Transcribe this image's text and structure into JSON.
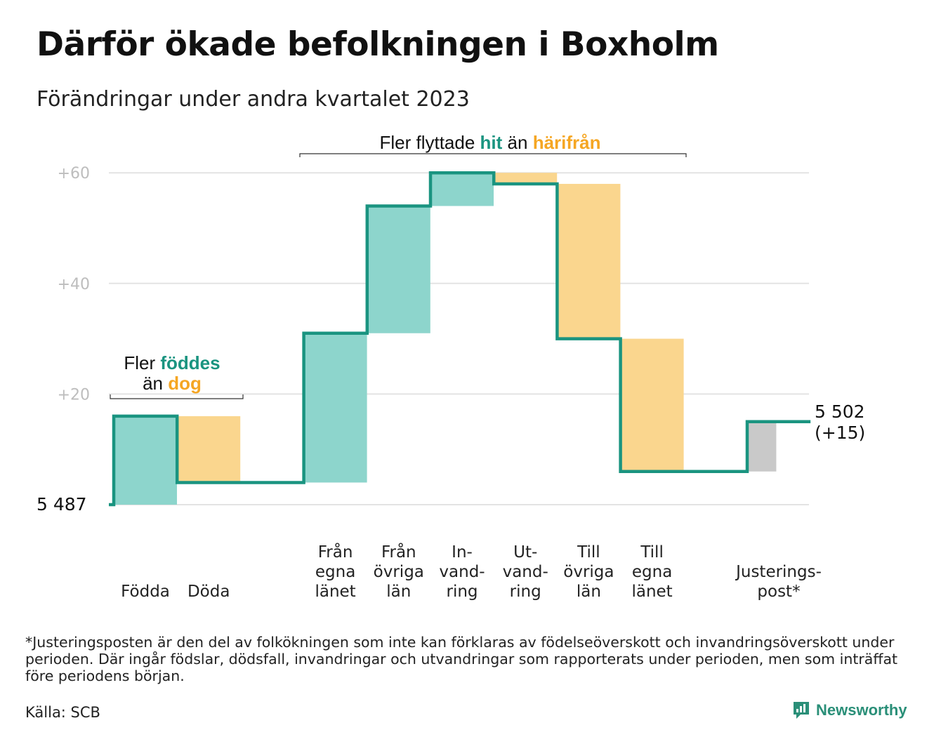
{
  "title": "Därför ökade befolkningen i Boxholm",
  "subtitle": "Förändringar under andra kvartalet 2023",
  "colors": {
    "line": "#1a9480",
    "increase": "#8dd5cc",
    "decrease": "#fad68e",
    "adjustment": "#c9c9c9",
    "grid": "#e3e3e3",
    "hit": "#1a9480",
    "harifran": "#f5a623"
  },
  "chart_data": {
    "type": "waterfall",
    "base_value": 5487,
    "base_label": "5  487",
    "y_ticks": [
      {
        "value": 20,
        "label": "+20"
      },
      {
        "value": 40,
        "label": "+40"
      },
      {
        "value": 60,
        "label": "+60"
      }
    ],
    "ylim": [
      0,
      60
    ],
    "steps": [
      {
        "category": [
          "Födda"
        ],
        "delta": 16,
        "kind": "increase"
      },
      {
        "category": [
          "Döda"
        ],
        "delta": -12,
        "kind": "decrease"
      },
      {
        "category": [],
        "delta": 0,
        "kind": "gap"
      },
      {
        "category": [
          "Från",
          "egna",
          "länet"
        ],
        "delta": 27,
        "kind": "increase"
      },
      {
        "category": [
          "Från",
          "övriga",
          "län"
        ],
        "delta": 23,
        "kind": "increase"
      },
      {
        "category": [
          "In-",
          "vand-",
          "ring"
        ],
        "delta": 6,
        "kind": "increase"
      },
      {
        "category": [
          "Ut-",
          "vand-",
          "ring"
        ],
        "delta": -2,
        "kind": "decrease"
      },
      {
        "category": [
          "Till",
          "övriga",
          "län"
        ],
        "delta": -28,
        "kind": "decrease"
      },
      {
        "category": [
          "Till",
          "egna",
          "länet"
        ],
        "delta": -24,
        "kind": "decrease"
      },
      {
        "category": [],
        "delta": 0,
        "kind": "gap"
      },
      {
        "category": [
          "Justerings-",
          "post*"
        ],
        "delta": 9,
        "kind": "adjustment"
      }
    ],
    "end_value_label": "5 502",
    "end_change_label": "(+15)",
    "annotations": {
      "births": {
        "line1_prefix": "Fler ",
        "line1_highlight": "föddes",
        "line2_prefix": "än ",
        "line2_highlight": "dog"
      },
      "migration": {
        "prefix": "Fler flyttade ",
        "hit": "hit",
        "middle": " än ",
        "harifran": "härifrån"
      }
    }
  },
  "footnote": "*Justeringsposten är den del av folkökningen som inte kan förklaras av födelseöverskott och invandringsöverskott under perioden. Där ingår födslar, dödsfall, invandringar och utvandringar som rapporterats under perioden, men som inträffat före periodens början.",
  "source": "Källa: SCB",
  "brand": {
    "name": "Newsworthy",
    "icon": "newsworthy-logo-icon"
  }
}
